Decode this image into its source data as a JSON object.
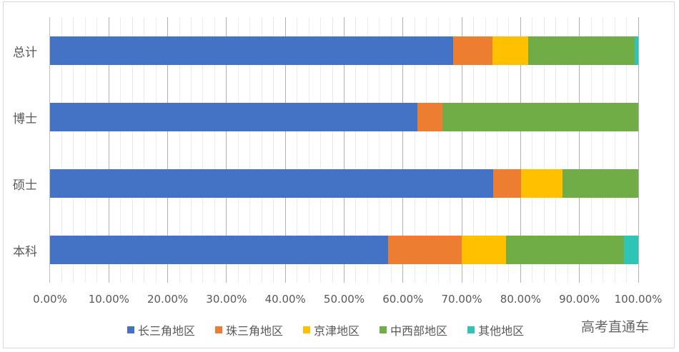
{
  "chart_data": {
    "type": "bar",
    "orientation": "horizontal",
    "stacked": "percent",
    "title": "",
    "xlabel": "",
    "ylabel": "",
    "xlim": [
      0,
      100
    ],
    "x_ticks": [
      "0.00%",
      "10.00%",
      "20.00%",
      "30.00%",
      "40.00%",
      "50.00%",
      "60.00%",
      "70.00%",
      "80.00%",
      "90.00%",
      "100.00%"
    ],
    "grid": {
      "major_step": 10,
      "minor_step": 2
    },
    "legend_position": "bottom",
    "categories": [
      "总计",
      "博士",
      "硕士",
      "本科"
    ],
    "series": [
      {
        "name": "长三角地区",
        "color": "#4472C4",
        "values": [
          68.5,
          62.5,
          75.3,
          57.5
        ]
      },
      {
        "name": "珠三角地区",
        "color": "#ED7D31",
        "values": [
          6.7,
          4.2,
          4.8,
          12.5
        ]
      },
      {
        "name": "京津地区",
        "color": "#FFC000",
        "values": [
          6.1,
          0.0,
          7.0,
          7.5
        ]
      },
      {
        "name": "中西部地区",
        "color": "#70AD47",
        "values": [
          18.1,
          33.3,
          12.9,
          20.1
        ]
      },
      {
        "name": "其他地区",
        "color": "#2EC4B6",
        "values": [
          0.6,
          0.0,
          0.0,
          2.4
        ]
      }
    ]
  },
  "watermark": "高考直通车"
}
